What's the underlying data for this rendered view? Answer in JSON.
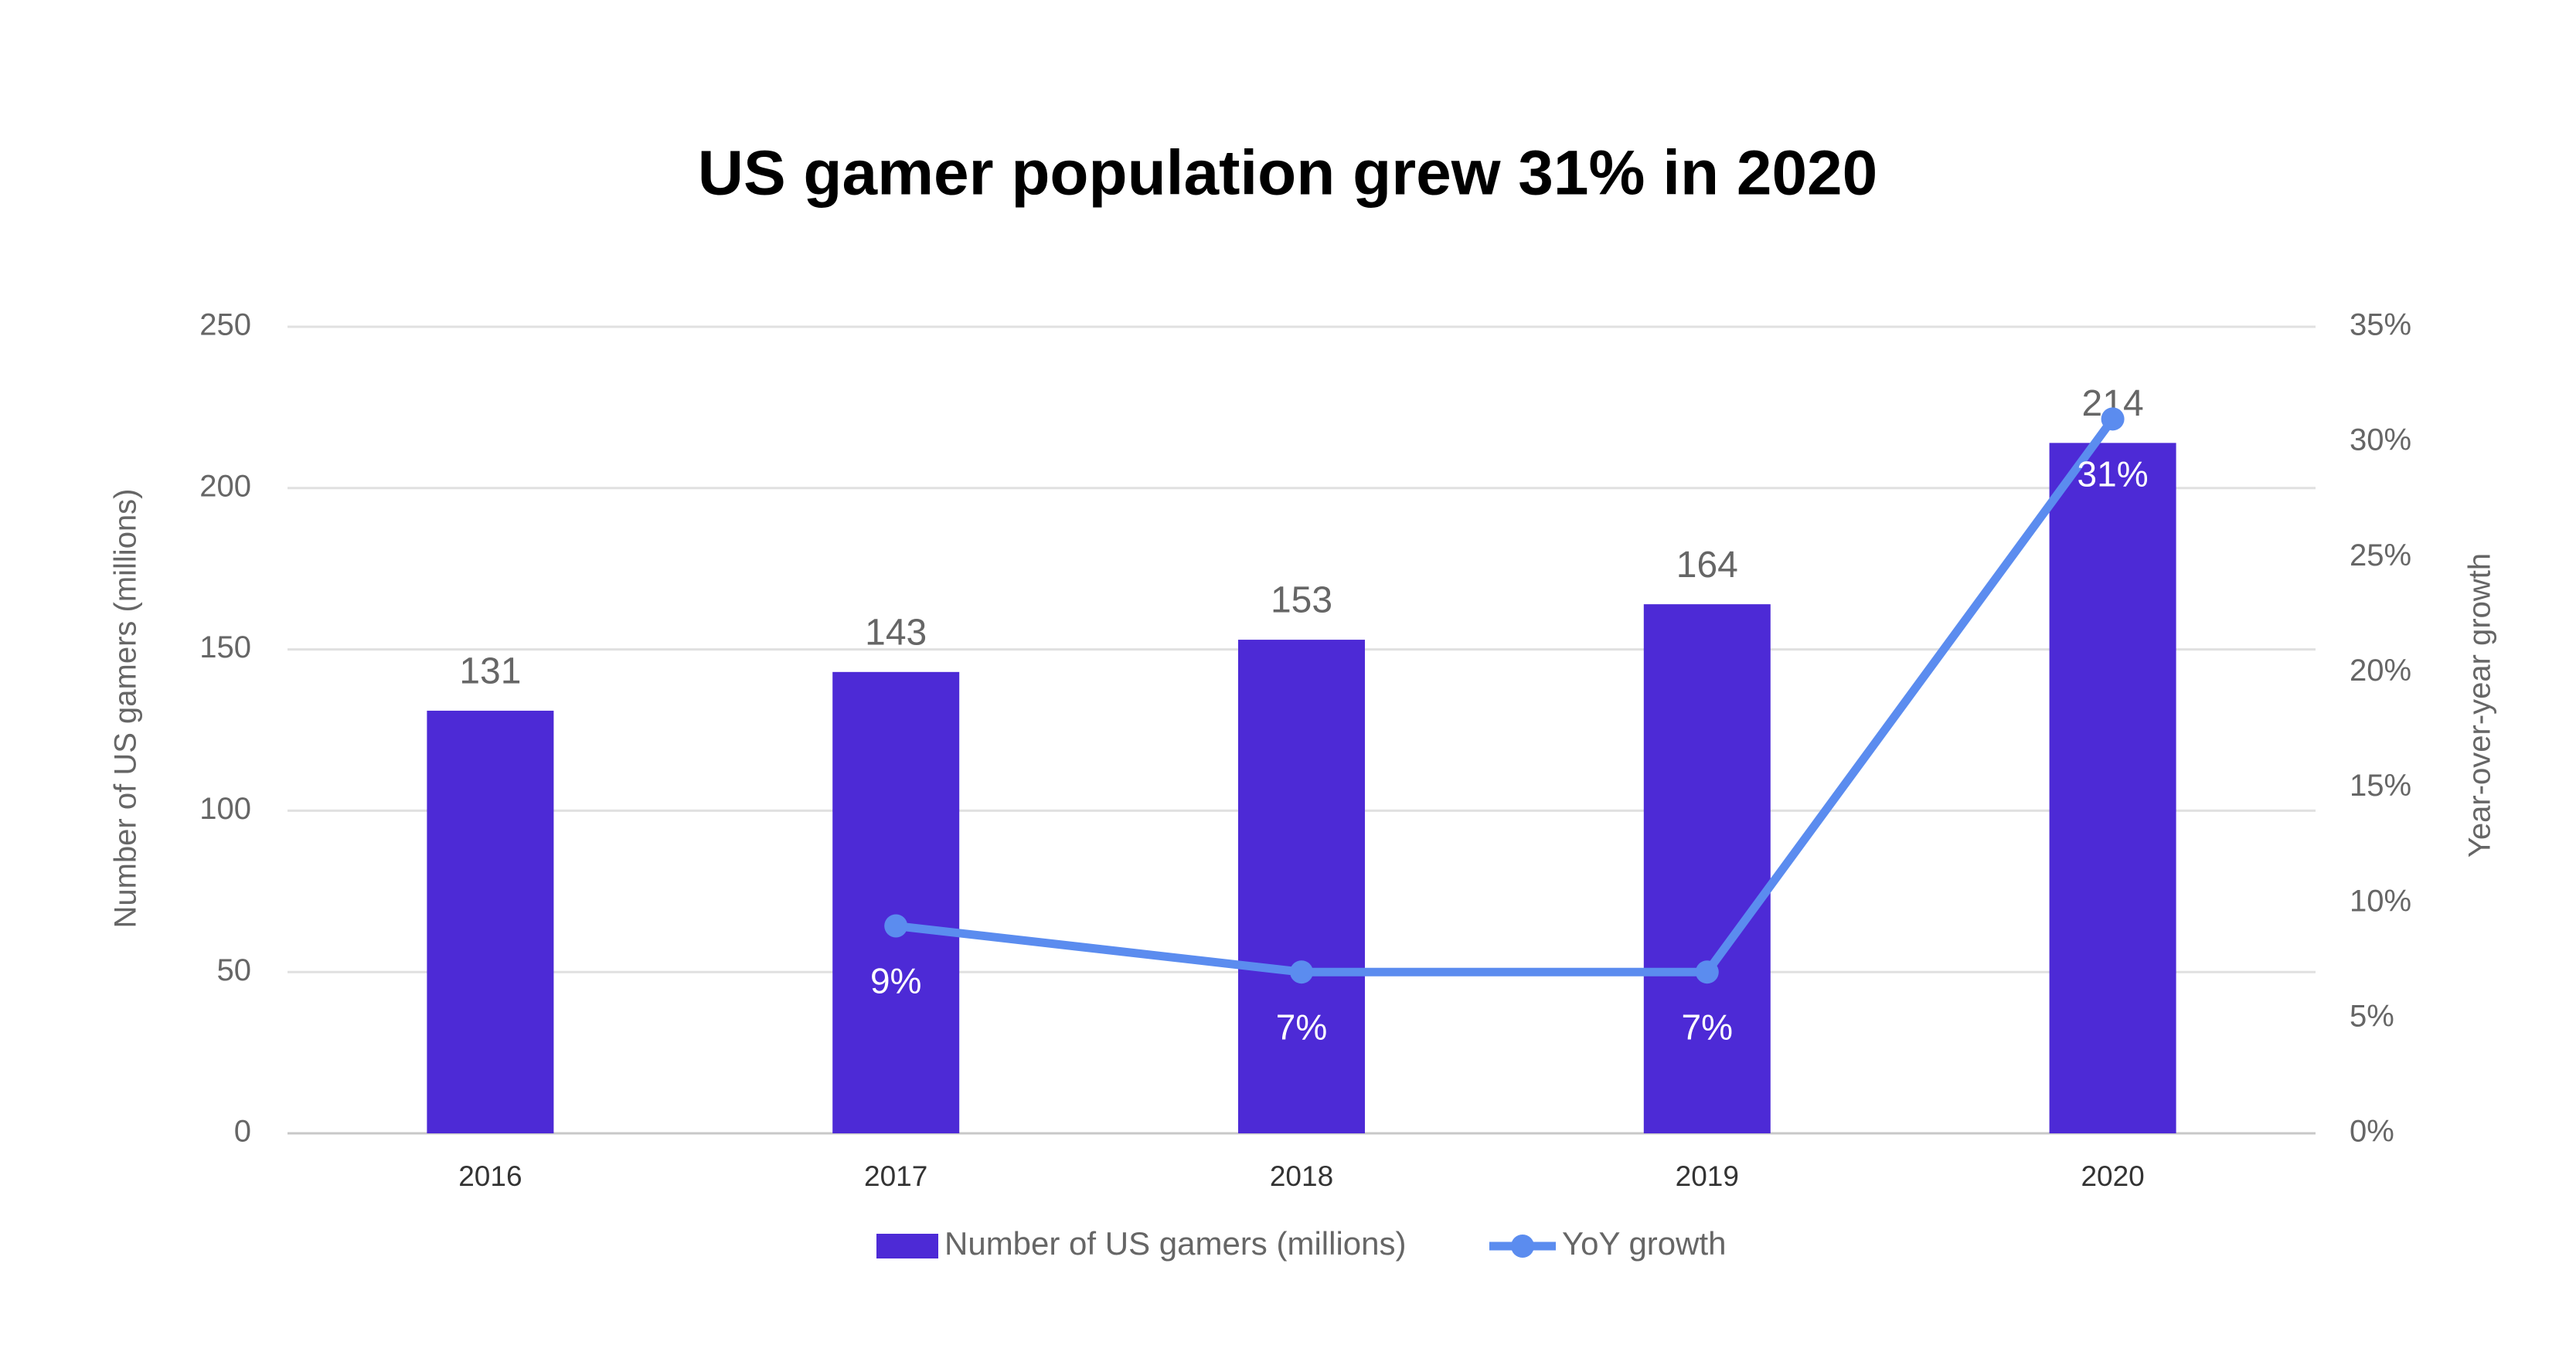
{
  "chart_data": {
    "type": "bar",
    "title": "US gamer population grew 31% in 2020",
    "y_label": "Number of US gamers (millions)",
    "y2_label": "Year-over-year growth",
    "categories": [
      "2016",
      "2017",
      "2018",
      "2019",
      "2020"
    ],
    "series": [
      {
        "name": "Number of US gamers (millions)",
        "type": "bar",
        "color": "#4d2ad6",
        "values": [
          131,
          143,
          153,
          164,
          214
        ]
      },
      {
        "name": "YoY growth",
        "type": "line",
        "axis": "y2",
        "color": "#5b8cef",
        "values": [
          null,
          9,
          7,
          7,
          31
        ],
        "value_labels": [
          null,
          "9%",
          "7%",
          "7%",
          "31%"
        ]
      }
    ],
    "ylim": [
      0,
      250
    ],
    "yticks": [
      0,
      50,
      100,
      150,
      200,
      250
    ],
    "y2lim": [
      0,
      35
    ],
    "y2ticks": [
      {
        "value": 0,
        "label": "0%"
      },
      {
        "value": 5,
        "label": "5%"
      },
      {
        "value": 10,
        "label": "10%"
      },
      {
        "value": 15,
        "label": "15%"
      },
      {
        "value": 20,
        "label": "20%"
      },
      {
        "value": 25,
        "label": "25%"
      },
      {
        "value": 30,
        "label": "30%"
      },
      {
        "value": 35,
        "label": "35%"
      }
    ],
    "grid": true,
    "legend": "bottom"
  }
}
